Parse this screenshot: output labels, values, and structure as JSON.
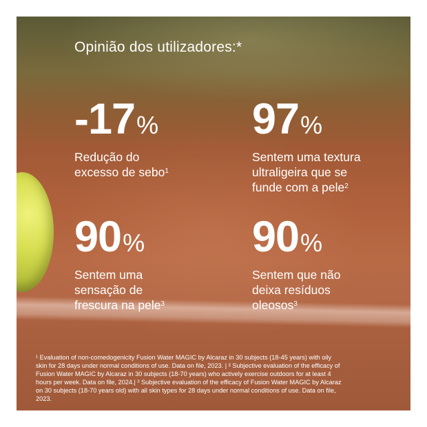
{
  "title": "Opinião dos utilizadores:*",
  "stats": [
    {
      "value": "-17",
      "unit": "%",
      "desc_lines": [
        "Redução do",
        "excesso de sebo"
      ],
      "ref": "1"
    },
    {
      "value": "97",
      "unit": "%",
      "desc_lines": [
        "Sentem uma textura",
        "ultraligeira que se",
        "funde com a pele"
      ],
      "ref": "2"
    },
    {
      "value": "90",
      "unit": "%",
      "desc_lines": [
        "Sentem uma",
        "sensação de",
        "frescura na pele"
      ],
      "ref": "3"
    },
    {
      "value": "90",
      "unit": "%",
      "desc_lines": [
        "Sentem que não",
        "deixa resíduos",
        "oleosos"
      ],
      "ref": "3"
    }
  ],
  "footnote_lines": [
    "¹ Evaluation of non-comedogenicity Fusion Water MAGIC by Alcaraz in 30 subjects (18-45 years) with oily",
    "skin for 28 days under normal conditions of use. Data on file, 2023. | ² Subjective evaluation of the efficacy of",
    "Fusion Water MAGIC by Alcaraz in 30 subjects (18-70 years) who actively exercise outdoors for at least 4",
    "hours per week. Data on file, 2024.| ³ Subjective evaluation of the efficacy of Fusion Water MAGIC by Alcaraz",
    "on 30 subjects (18-70 years old) with all skin types for 28 days under normal conditions of use. Data on file,",
    "2023."
  ]
}
